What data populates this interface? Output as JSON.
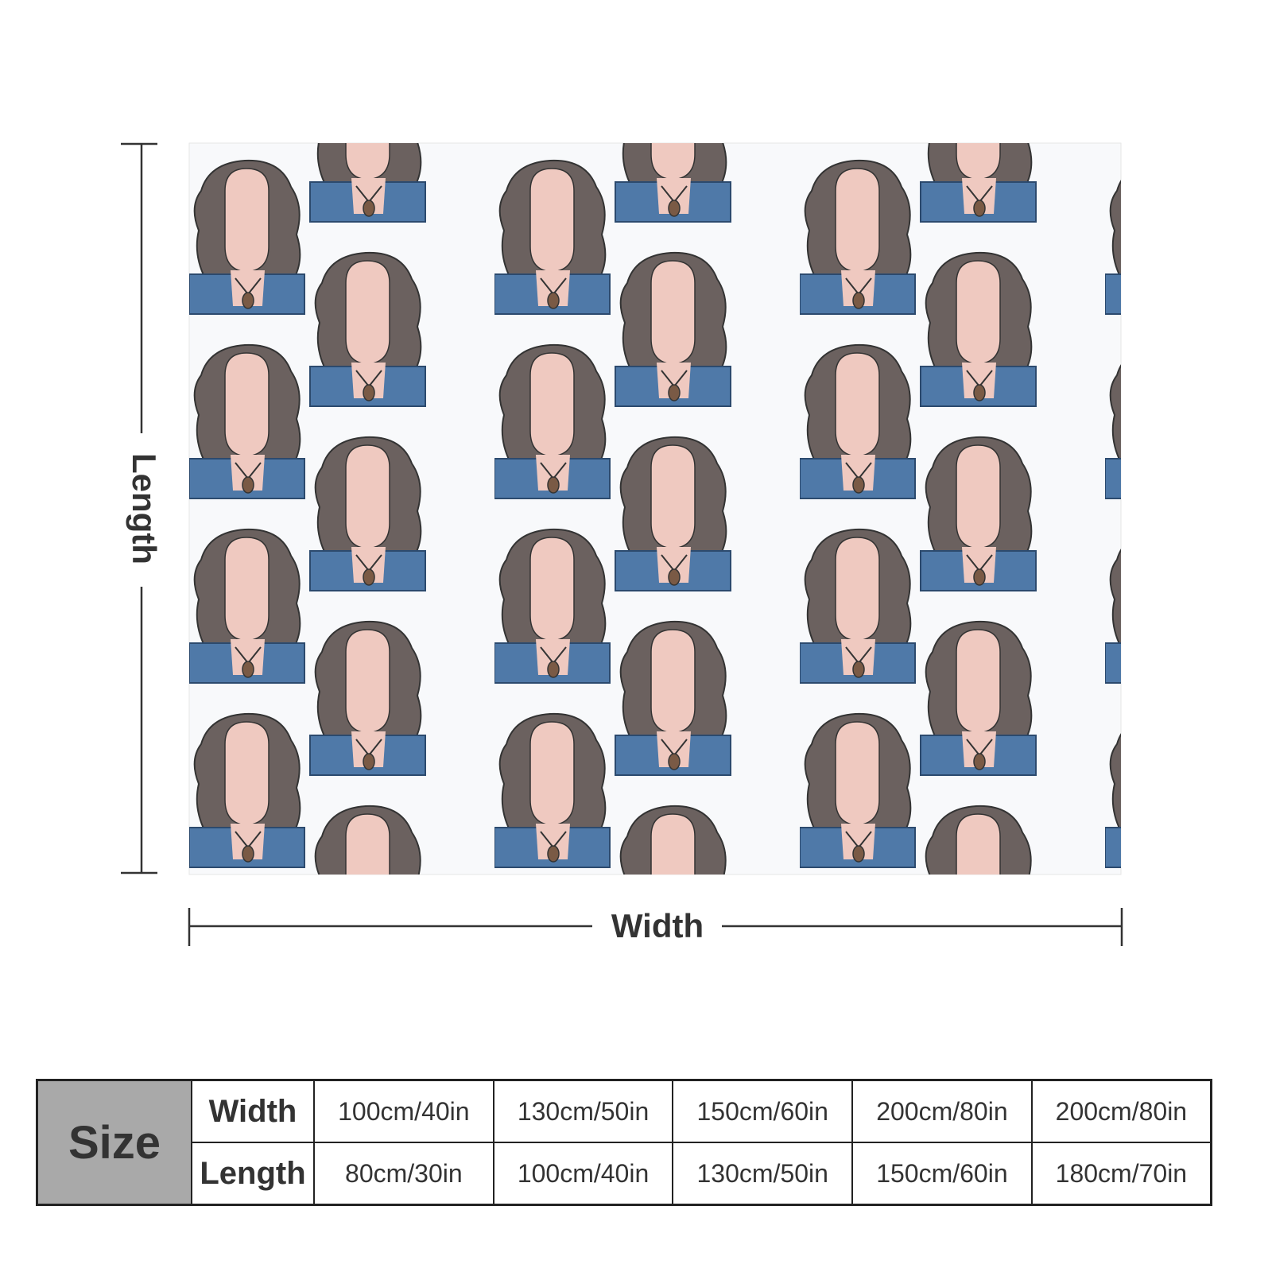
{
  "diagram": {
    "length_label": "Length",
    "width_label": "Width"
  },
  "table": {
    "header": "Size",
    "rows": [
      [
        "Width",
        "100cm/40in",
        "130cm/50in",
        "150cm/60in",
        "200cm/80in",
        "200cm/80in"
      ],
      [
        "Length",
        "80cm/30in",
        "100cm/40in",
        "130cm/50in",
        "150cm/60in",
        "180cm/70in"
      ]
    ]
  }
}
